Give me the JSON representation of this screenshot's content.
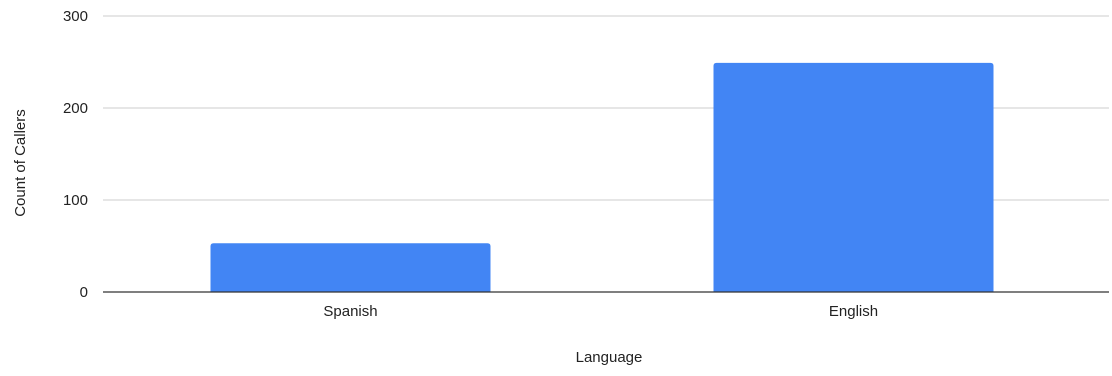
{
  "chart_data": {
    "type": "bar",
    "title": "",
    "xlabel": "Language",
    "ylabel": "Count of Callers",
    "categories": [
      "Spanish",
      "English"
    ],
    "values": [
      53,
      249
    ],
    "ylim": [
      0,
      300
    ],
    "yticks": [
      0,
      100,
      200,
      300
    ],
    "grid": true,
    "legend": "none",
    "bar_color": "#4285f4",
    "gridline_color": "#cccccc",
    "axis_color": "#333333"
  }
}
